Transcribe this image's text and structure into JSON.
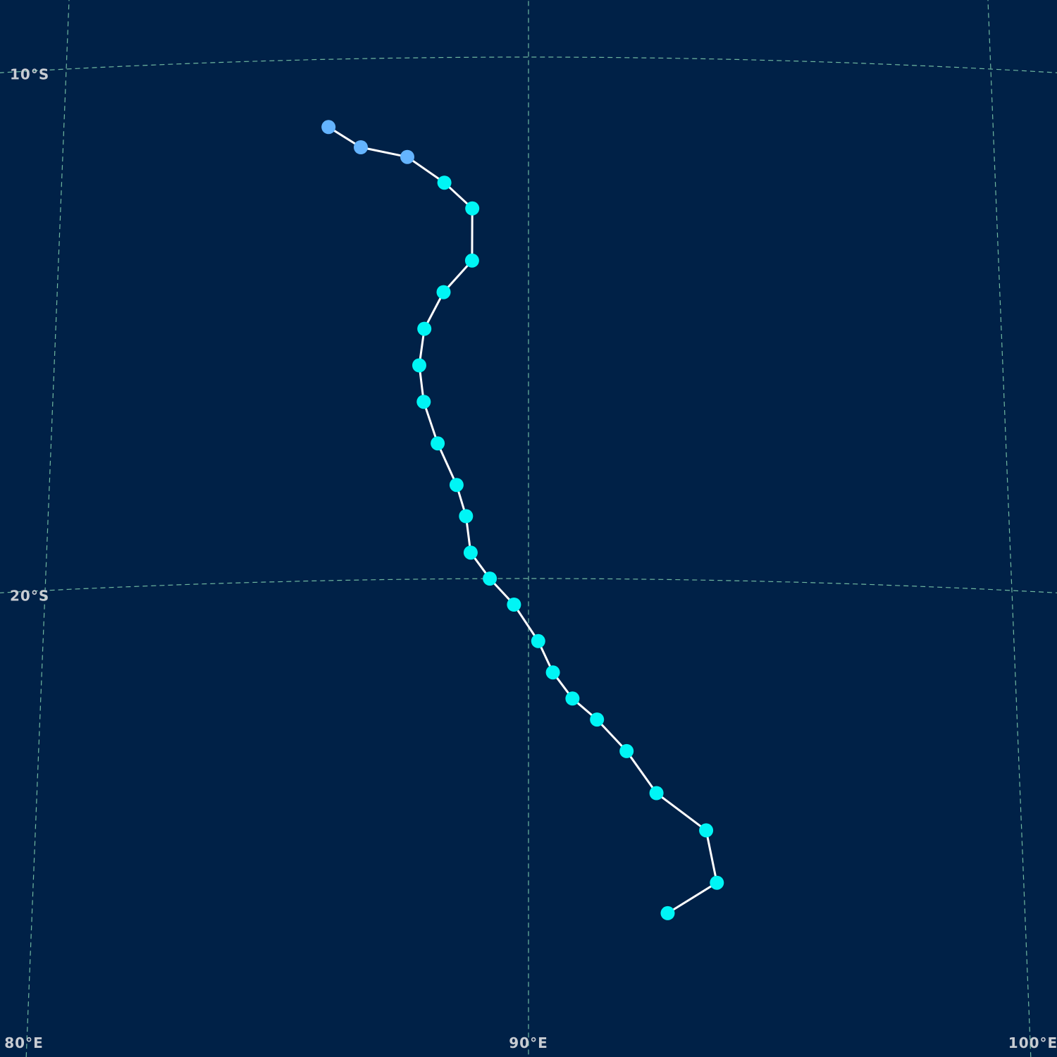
{
  "map": {
    "background": "#002147",
    "grid_color": "#6fb7a0",
    "track_line_color": "#ffffff",
    "latitude_labels": [
      {
        "text": "10°S",
        "lat": -10
      },
      {
        "text": "20°S",
        "lat": -20
      }
    ],
    "longitude_labels": [
      {
        "text": "80°E",
        "lon": 80
      },
      {
        "text": "90°E",
        "lon": 90
      },
      {
        "text": "100°E",
        "lon": 100
      }
    ]
  },
  "storm_track": {
    "category_colors": {
      "depression": "#64b4ff",
      "storm": "#00f5f5"
    },
    "points": [
      {
        "lon": 85.7,
        "lat": -11.3,
        "category": "depression"
      },
      {
        "lon": 86.4,
        "lat": -11.7,
        "category": "depression"
      },
      {
        "lon": 87.4,
        "lat": -11.9,
        "category": "depression"
      },
      {
        "lon": 88.2,
        "lat": -12.4,
        "category": "storm"
      },
      {
        "lon": 88.8,
        "lat": -12.9,
        "category": "storm"
      },
      {
        "lon": 88.8,
        "lat": -13.9,
        "category": "storm"
      },
      {
        "lon": 88.2,
        "lat": -14.5,
        "category": "storm"
      },
      {
        "lon": 87.8,
        "lat": -15.2,
        "category": "storm"
      },
      {
        "lon": 87.7,
        "lat": -15.9,
        "category": "storm"
      },
      {
        "lon": 87.8,
        "lat": -16.6,
        "category": "storm"
      },
      {
        "lon": 88.1,
        "lat": -17.4,
        "category": "storm"
      },
      {
        "lon": 88.5,
        "lat": -18.2,
        "category": "storm"
      },
      {
        "lon": 88.7,
        "lat": -18.8,
        "category": "storm"
      },
      {
        "lon": 88.8,
        "lat": -19.5,
        "category": "storm"
      },
      {
        "lon": 89.2,
        "lat": -20.0,
        "category": "storm"
      },
      {
        "lon": 89.7,
        "lat": -20.5,
        "category": "storm"
      },
      {
        "lon": 90.2,
        "lat": -21.2,
        "category": "storm"
      },
      {
        "lon": 90.5,
        "lat": -21.8,
        "category": "storm"
      },
      {
        "lon": 90.9,
        "lat": -22.3,
        "category": "storm"
      },
      {
        "lon": 91.4,
        "lat": -22.7,
        "category": "storm"
      },
      {
        "lon": 92.0,
        "lat": -23.3,
        "category": "storm"
      },
      {
        "lon": 92.6,
        "lat": -24.1,
        "category": "storm"
      },
      {
        "lon": 93.6,
        "lat": -24.8,
        "category": "storm"
      },
      {
        "lon": 93.8,
        "lat": -25.8,
        "category": "storm"
      },
      {
        "lon": 92.8,
        "lat": -26.4,
        "category": "storm"
      }
    ]
  }
}
